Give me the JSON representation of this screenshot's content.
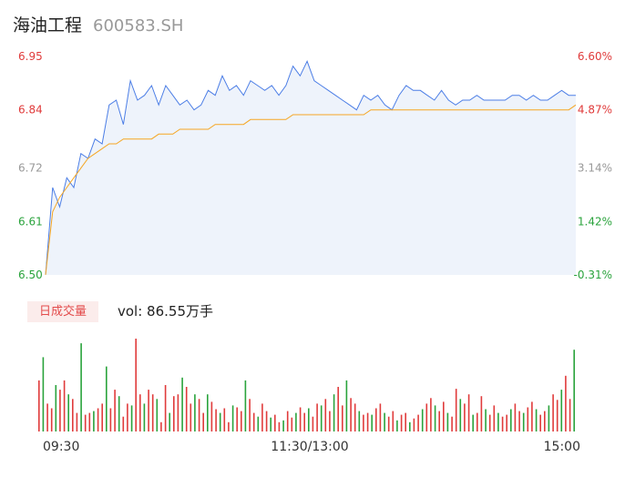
{
  "header": {
    "name": "海油工程",
    "code": "600583.SH"
  },
  "volume_panel": {
    "badge": "日成交量",
    "vol_text": "vol: 86.55万手"
  },
  "colors": {
    "up": "#e03b3b",
    "down": "#2aa33c",
    "neutral": "#999999",
    "price_line": "#4c7ee6",
    "avg_line": "#f5a623",
    "area_fill": "#eef3fb"
  },
  "chart_data": [
    {
      "type": "line",
      "ylim": [
        6.5,
        6.95
      ],
      "pct_range": [
        -0.31,
        6.6
      ],
      "y_ticks": [
        {
          "value": 6.95,
          "label": "6.95",
          "pct": "6.60%",
          "color": "up"
        },
        {
          "value": 6.84,
          "label": "6.84",
          "pct": "4.87%",
          "color": "up"
        },
        {
          "value": 6.72,
          "label": "6.72",
          "pct": "3.14%",
          "color": "neutral"
        },
        {
          "value": 6.61,
          "label": "6.61",
          "pct": "1.42%",
          "color": "down"
        },
        {
          "value": 6.5,
          "label": "6.50",
          "pct": "-0.31%",
          "color": "down"
        }
      ],
      "x_ticks": [
        "09:30",
        "11:30/13:00",
        "15:00"
      ],
      "series": [
        {
          "values": [
            6.5,
            6.68,
            6.64,
            6.7,
            6.68,
            6.75,
            6.74,
            6.78,
            6.77,
            6.85,
            6.86,
            6.81,
            6.9,
            6.86,
            6.87,
            6.89,
            6.85,
            6.89,
            6.87,
            6.85,
            6.86,
            6.84,
            6.85,
            6.88,
            6.87,
            6.91,
            6.88,
            6.89,
            6.87,
            6.9,
            6.89,
            6.88,
            6.89,
            6.87,
            6.89,
            6.93,
            6.91,
            6.94,
            6.9,
            6.89,
            6.88,
            6.87,
            6.86,
            6.85,
            6.84,
            6.87,
            6.86,
            6.87,
            6.85,
            6.84,
            6.87,
            6.89,
            6.88,
            6.88,
            6.87,
            6.86,
            6.88,
            6.86,
            6.85,
            6.86,
            6.86,
            6.87,
            6.86,
            6.86,
            6.86,
            6.86,
            6.87,
            6.87,
            6.86,
            6.87,
            6.86,
            6.86,
            6.87,
            6.88,
            6.87,
            6.87
          ]
        },
        {
          "values": [
            6.5,
            6.63,
            6.66,
            6.68,
            6.7,
            6.72,
            6.74,
            6.75,
            6.76,
            6.77,
            6.77,
            6.78,
            6.78,
            6.78,
            6.78,
            6.78,
            6.79,
            6.79,
            6.79,
            6.8,
            6.8,
            6.8,
            6.8,
            6.8,
            6.81,
            6.81,
            6.81,
            6.81,
            6.81,
            6.82,
            6.82,
            6.82,
            6.82,
            6.82,
            6.82,
            6.83,
            6.83,
            6.83,
            6.83,
            6.83,
            6.83,
            6.83,
            6.83,
            6.83,
            6.83,
            6.83,
            6.84,
            6.84,
            6.84,
            6.84,
            6.84,
            6.84,
            6.84,
            6.84,
            6.84,
            6.84,
            6.84,
            6.84,
            6.84,
            6.84,
            6.84,
            6.84,
            6.84,
            6.84,
            6.84,
            6.84,
            6.84,
            6.84,
            6.84,
            6.84,
            6.84,
            6.84,
            6.84,
            6.84,
            6.84,
            6.85
          ]
        }
      ]
    },
    {
      "type": "bar",
      "values": [
        55,
        80,
        30,
        25,
        50,
        45,
        55,
        40,
        35,
        20,
        95,
        18,
        20,
        22,
        25,
        30,
        70,
        25,
        45,
        38,
        16,
        30,
        28,
        100,
        40,
        30,
        45,
        40,
        35,
        10,
        50,
        20,
        38,
        40,
        58,
        48,
        30,
        40,
        35,
        20,
        40,
        32,
        24,
        20,
        25,
        10,
        28,
        26,
        22,
        55,
        35,
        20,
        16,
        30,
        22,
        15,
        18,
        10,
        12,
        22,
        15,
        20,
        26,
        20,
        25,
        16,
        30,
        28,
        35,
        22,
        40,
        48,
        28,
        55,
        36,
        30,
        22,
        18,
        20,
        18,
        25,
        30,
        20,
        16,
        22,
        12,
        18,
        20,
        10,
        14,
        18,
        24,
        30,
        36,
        28,
        22,
        32,
        20,
        16,
        46,
        35,
        30,
        40,
        18,
        20,
        38,
        24,
        18,
        28,
        20,
        16,
        18,
        24,
        30,
        22,
        20,
        26,
        32,
        24,
        18,
        22,
        28,
        40,
        34,
        45,
        60,
        35,
        88
      ]
    }
  ]
}
